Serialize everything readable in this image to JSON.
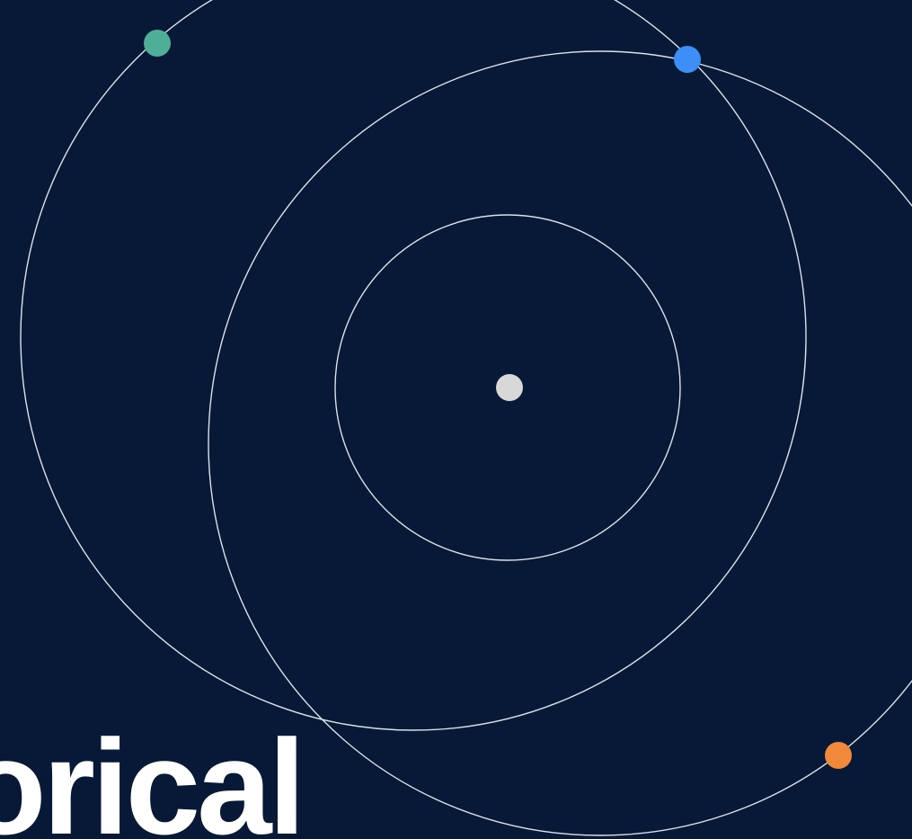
{
  "headline": {
    "text": "orical"
  },
  "colors": {
    "background": "#071936",
    "orbit_stroke": "#dbe2ea",
    "center_dot": "#d8d8d8",
    "green_dot": "#4fae98",
    "blue_dot": "#3d8ff7",
    "orange_dot": "#f08a3a",
    "headline": "#ffffff"
  }
}
